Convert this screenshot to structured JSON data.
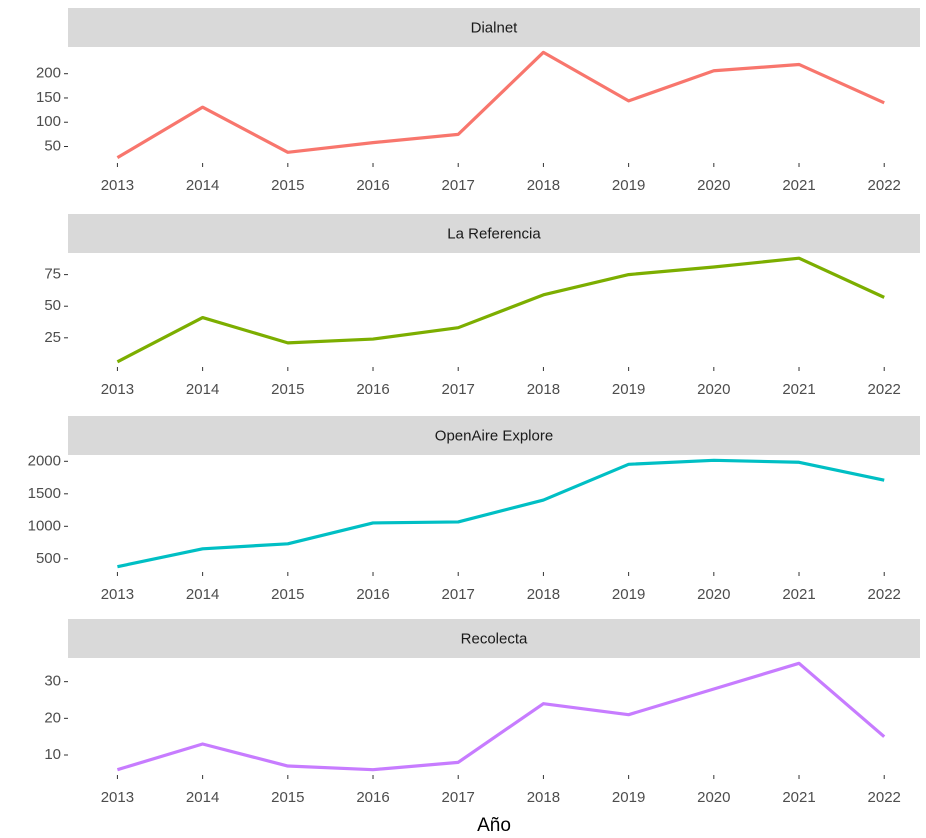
{
  "x_label": "Año",
  "chart_data": [
    {
      "type": "line",
      "title": "Dialnet",
      "color": "#F8766D",
      "x": [
        2013,
        2014,
        2015,
        2016,
        2017,
        2018,
        2019,
        2020,
        2021,
        2022
      ],
      "values": [
        27,
        131,
        38,
        58,
        75,
        244,
        144,
        206,
        219,
        140
      ],
      "xlim": [
        2012.42,
        2022.42
      ],
      "xticks": [
        2013,
        2014,
        2015,
        2016,
        2017,
        2018,
        2019,
        2020,
        2021,
        2022
      ],
      "ylim": [
        16,
        255
      ],
      "yticks": [
        50,
        100,
        150,
        200
      ]
    },
    {
      "type": "line",
      "title": "La Referencia",
      "color": "#7CAE00",
      "x": [
        2013,
        2014,
        2015,
        2016,
        2017,
        2018,
        2019,
        2020,
        2021,
        2022
      ],
      "values": [
        6,
        41,
        21,
        24,
        33,
        59,
        75,
        81,
        88,
        57
      ],
      "xlim": [
        2012.42,
        2022.42
      ],
      "xticks": [
        2013,
        2014,
        2015,
        2016,
        2017,
        2018,
        2019,
        2020,
        2021,
        2022
      ],
      "ylim": [
        1.9,
        92.1
      ],
      "yticks": [
        25,
        50,
        75
      ]
    },
    {
      "type": "line",
      "title": "OpenAire Explore",
      "color": "#00BFC4",
      "x": [
        2013,
        2014,
        2015,
        2016,
        2017,
        2018,
        2019,
        2020,
        2021,
        2022
      ],
      "values": [
        379,
        654,
        731,
        1052,
        1067,
        1404,
        1954,
        2015,
        1985,
        1709
      ],
      "xlim": [
        2012.42,
        2022.42
      ],
      "xticks": [
        2013,
        2014,
        2015,
        2016,
        2017,
        2018,
        2019,
        2020,
        2021,
        2022
      ],
      "ylim": [
        297,
        2097
      ],
      "yticks": [
        500,
        1000,
        1500,
        2000
      ]
    },
    {
      "type": "line",
      "title": "Recolecta",
      "color": "#C77CFF",
      "x": [
        2013,
        2014,
        2015,
        2016,
        2017,
        2018,
        2019,
        2020,
        2021,
        2022
      ],
      "values": [
        6,
        13,
        7,
        6,
        8,
        24,
        21,
        28,
        35,
        15
      ],
      "xlim": [
        2012.42,
        2022.42
      ],
      "xticks": [
        2013,
        2014,
        2015,
        2016,
        2017,
        2018,
        2019,
        2020,
        2021,
        2022
      ],
      "ylim": [
        4.55,
        36.45
      ],
      "yticks": [
        10,
        20,
        30
      ]
    }
  ]
}
